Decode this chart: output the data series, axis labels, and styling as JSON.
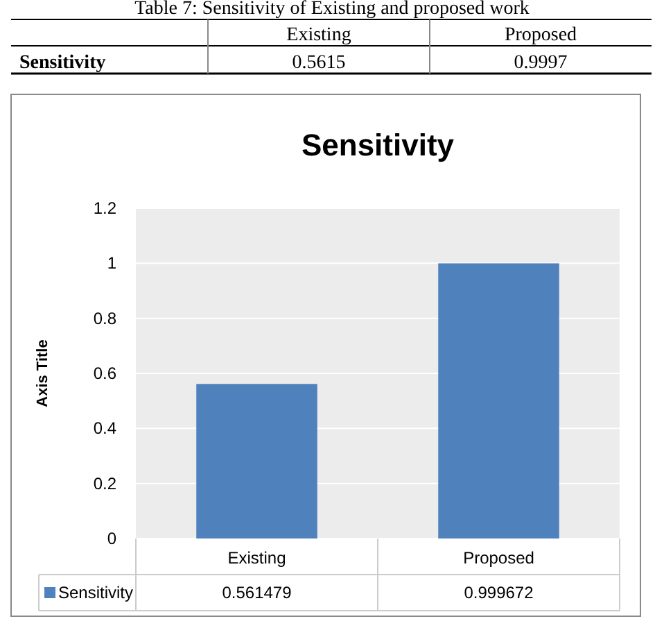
{
  "chart_data": {
    "type": "bar",
    "title": "Sensitivity",
    "ylabel": "Axis Title",
    "categories": [
      "Existing",
      "Proposed"
    ],
    "series": [
      {
        "name": "Sensitivity",
        "color": "#4f81bd",
        "values": [
          0.561479,
          0.999672
        ]
      }
    ],
    "ylim": [
      0,
      1.2
    ],
    "yticks": [
      0,
      0.2,
      0.4,
      0.6,
      0.8,
      1,
      1.2
    ],
    "grid": "y",
    "legend": "bottom",
    "data_labels": true,
    "annotations": [
      "Table 7: Sensitivity of Existing and proposed work",
      "Existing",
      "Proposed",
      "Sensitivity",
      "0.5615",
      "0.9997"
    ]
  }
}
